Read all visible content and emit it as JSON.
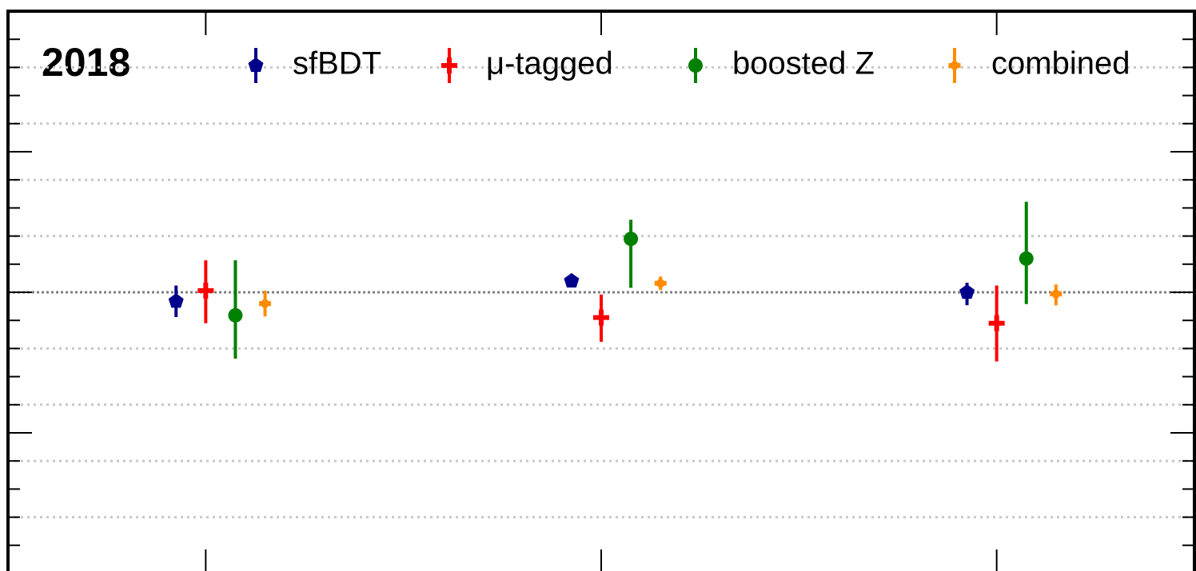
{
  "chart_data": {
    "type": "errorbar",
    "title": "2018",
    "categories": [
      null,
      null,
      null
    ],
    "ylim": [
      0.5,
      1.5
    ],
    "yticks": [
      0.75,
      1.0,
      1.25
    ],
    "yminor": [
      0.55,
      0.6,
      0.65,
      0.7,
      0.8,
      0.85,
      0.9,
      0.95,
      1.05,
      1.1,
      1.15,
      1.2,
      1.3,
      1.35,
      1.4,
      1.45
    ],
    "grid_lines": [
      0.6,
      0.7,
      0.8,
      0.9,
      1.1,
      1.2,
      1.3,
      1.4
    ],
    "reference_line": 1.0,
    "legend": "top",
    "series": [
      {
        "name": "sfBDT",
        "color": "#00008b",
        "marker": "pentagon",
        "values": [
          0.984,
          1.02,
          1.0
        ],
        "err_down": [
          0.028,
          0.011,
          0.023
        ],
        "err_up": [
          0.028,
          0.011,
          0.017
        ]
      },
      {
        "name": "μ-tagged",
        "color": "#ff0000",
        "marker": "plus",
        "values": [
          1.003,
          0.955,
          0.945
        ],
        "err_down": [
          0.058,
          0.043,
          0.068
        ],
        "err_up": [
          0.054,
          0.041,
          0.067
        ]
      },
      {
        "name": "boosted Z",
        "color": "#008000",
        "marker": "circle",
        "values": [
          0.959,
          1.095,
          1.06
        ],
        "err_down": [
          0.077,
          0.087,
          0.081
        ],
        "err_up": [
          0.098,
          0.034,
          0.101
        ]
      },
      {
        "name": "combined",
        "color": "#ff8c00",
        "marker": "x",
        "values": [
          0.98,
          1.016,
          0.997
        ],
        "err_down": [
          0.023,
          0.012,
          0.02
        ],
        "err_up": [
          0.023,
          0.012,
          0.017
        ]
      }
    ]
  }
}
